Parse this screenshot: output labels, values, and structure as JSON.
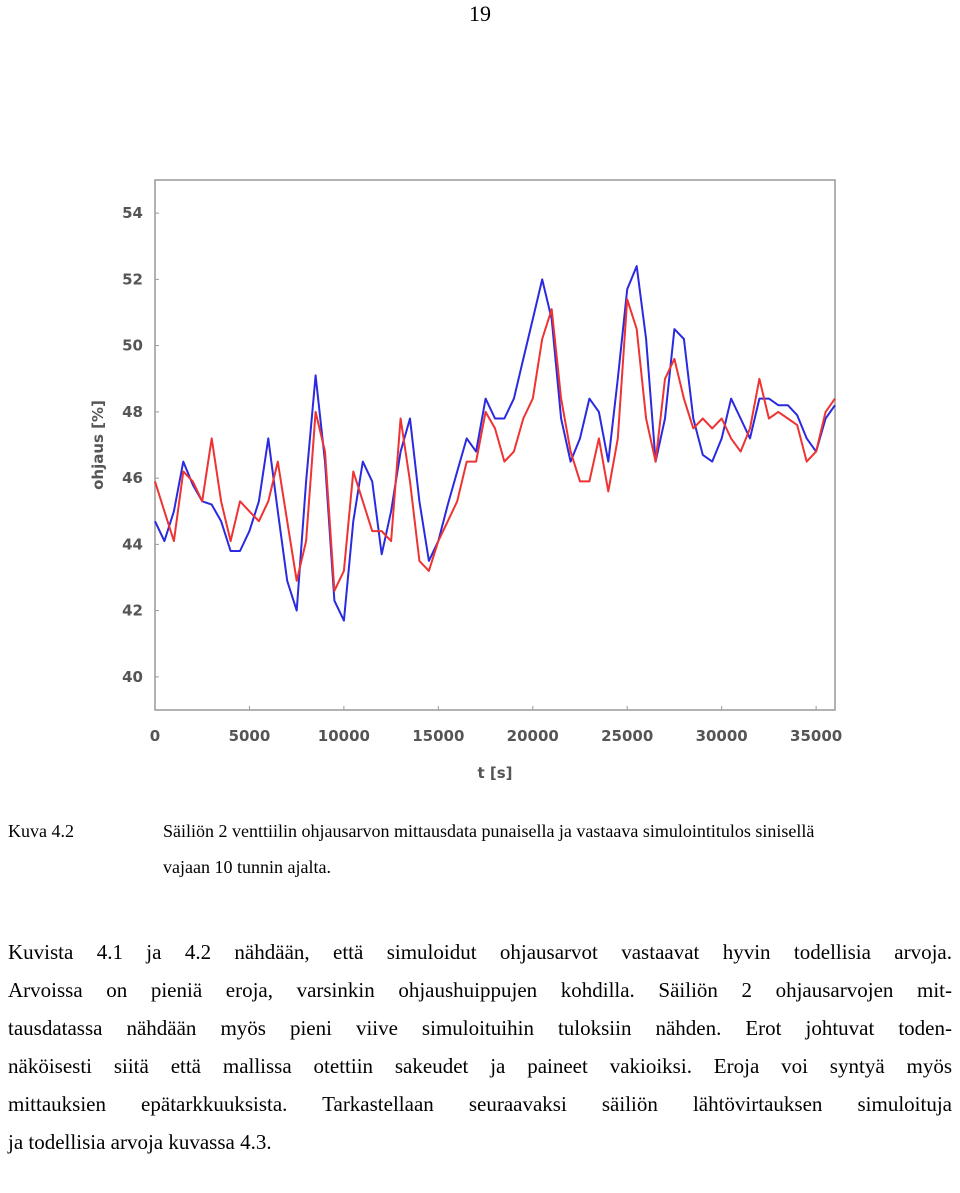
{
  "page_number": "19",
  "chart_data": {
    "type": "line",
    "xlabel": "t [s]",
    "ylabel": "ohjaus [%]",
    "x": [
      0,
      500,
      1000,
      1500,
      2000,
      2500,
      3000,
      3500,
      4000,
      4500,
      5000,
      5500,
      6000,
      6500,
      7000,
      7500,
      8000,
      8500,
      9000,
      9500,
      10000,
      10500,
      11000,
      11500,
      12000,
      12500,
      13000,
      13500,
      14000,
      14500,
      15000,
      15500,
      16000,
      16500,
      17000,
      17500,
      18000,
      18500,
      19000,
      19500,
      20000,
      20500,
      21000,
      21500,
      22000,
      22500,
      23000,
      23500,
      24000,
      24500,
      25000,
      25500,
      26000,
      26500,
      27000,
      27500,
      28000,
      28500,
      29000,
      29500,
      30000,
      30500,
      31000,
      31500,
      32000,
      32500,
      33000,
      33500,
      34000,
      34500,
      35000,
      35500,
      36000
    ],
    "series": [
      {
        "color": "#2a2ae0",
        "values": [
          44.7,
          44.1,
          45,
          46.5,
          45.8,
          45.3,
          45.2,
          44.7,
          43.8,
          43.8,
          44.4,
          45.3,
          47.2,
          45,
          42.9,
          42,
          45.9,
          49.1,
          46.5,
          42.3,
          41.7,
          44.7,
          46.5,
          45.9,
          43.7,
          45,
          46.8,
          47.8,
          45.3,
          43.5,
          44.1,
          45.2,
          46.2,
          47.2,
          46.8,
          48.4,
          47.8,
          47.8,
          48.4,
          49.6,
          50.8,
          52,
          50.8,
          47.8,
          46.5,
          47.2,
          48.4,
          48,
          46.5,
          49,
          51.7,
          52.4,
          50.2,
          46.5,
          47.8,
          50.5,
          50.2,
          47.8,
          46.7,
          46.5,
          47.2,
          48.4,
          47.8,
          47.2,
          48.4,
          48.4,
          48.2,
          48.2,
          47.9,
          47.2,
          46.8,
          47.8,
          48.2
        ]
      },
      {
        "color": "#ee3333",
        "values": [
          45.9,
          45,
          44.1,
          46.2,
          45.9,
          45.3,
          47.2,
          45.3,
          44.1,
          45.3,
          45,
          44.7,
          45.3,
          46.5,
          44.7,
          42.9,
          44.1,
          48,
          46.8,
          42.6,
          43.2,
          46.2,
          45.3,
          44.4,
          44.4,
          44.1,
          47.8,
          45.9,
          43.5,
          43.2,
          44.1,
          44.7,
          45.3,
          46.5,
          46.5,
          48,
          47.5,
          46.5,
          46.8,
          47.8,
          48.4,
          50.2,
          51.1,
          48.4,
          46.8,
          45.9,
          45.9,
          47.2,
          45.6,
          47.2,
          51.4,
          50.5,
          47.8,
          46.5,
          49,
          49.6,
          48.4,
          47.5,
          47.8,
          47.5,
          47.8,
          47.2,
          46.8,
          47.5,
          49,
          47.8,
          48,
          47.8,
          47.6,
          46.5,
          46.8,
          48,
          48.4
        ]
      }
    ],
    "xlim": [
      0,
      36000
    ],
    "xticks": [
      0,
      5000,
      10000,
      15000,
      20000,
      25000,
      30000,
      35000
    ],
    "ylim": [
      39,
      55
    ],
    "yticks": [
      40,
      42,
      44,
      46,
      48,
      50,
      52,
      54
    ],
    "grid": false
  },
  "caption": {
    "label": "Kuva 4.2",
    "line1": "Säiliön 2 venttiilin ohjausarvon mittausdata punaisella ja vastaava simulointitulos sinisellä",
    "line2": "vajaan 10 tunnin ajalta."
  },
  "paragraph": [
    "Kuvista 4.1 ja 4.2 nähdään, että simuloidut ohjausarvot vastaavat hyvin todellisia arvoja.",
    "Arvoissa on pieniä eroja, varsinkin ohjaushuippujen kohdilla. Säiliön 2 ohjausarvojen mit-",
    "tausdatassa nähdään myös pieni viive simuloituihin tuloksiin nähden. Erot johtuvat toden-",
    "näköisesti siitä että mallissa otettiin sakeudet ja paineet vakioiksi. Eroja voi syntyä myös",
    "mittauksien epätarkkuuksista. Tarkastellaan seuraavaksi säiliön lähtövirtauksen simuloituja",
    "ja todellisia arvoja kuvassa 4.3."
  ]
}
